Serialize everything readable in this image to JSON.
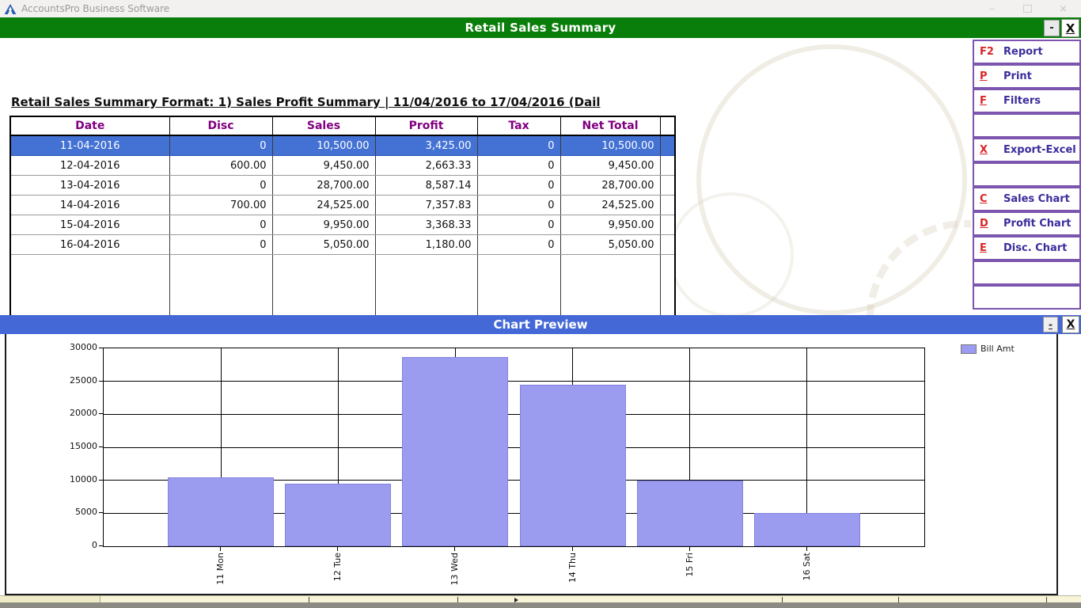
{
  "os_window": {
    "app_title": "AccountsPro Business Software",
    "minimize_glyph": "–",
    "close_glyph": "×"
  },
  "report_window": {
    "title": "Retail Sales Summary",
    "minimize_label": "-",
    "close_label": "X",
    "header_line": "Retail Sales Summary Format: 1) Sales  Profit Summary |  11/04/2016 to 17/04/2016 (Dail",
    "table": {
      "columns": [
        "Date",
        "Disc",
        "Sales",
        "Profit",
        "Tax",
        "Net Total"
      ],
      "rows": [
        [
          "11-04-2016",
          "0",
          "10,500.00",
          "3,425.00",
          "0",
          "10,500.00"
        ],
        [
          "12-04-2016",
          "600.00",
          "9,450.00",
          "2,663.33",
          "0",
          "9,450.00"
        ],
        [
          "13-04-2016",
          "0",
          "28,700.00",
          "8,587.14",
          "0",
          "28,700.00"
        ],
        [
          "14-04-2016",
          "700.00",
          "24,525.00",
          "7,357.83",
          "0",
          "24,525.00"
        ],
        [
          "15-04-2016",
          "0",
          "9,950.00",
          "3,368.33",
          "0",
          "9,950.00"
        ],
        [
          "16-04-2016",
          "0",
          "5,050.00",
          "1,180.00",
          "0",
          "5,050.00"
        ]
      ],
      "selected_row_index": 0
    }
  },
  "sidebar": {
    "buttons": [
      {
        "key": "F2",
        "label": "Report",
        "underline_key": false
      },
      {
        "key": "P",
        "label": "Print",
        "underline_key": true
      },
      {
        "key": "F",
        "label": "Filters",
        "underline_key": true
      },
      {
        "key": "",
        "label": "",
        "underline_key": false
      },
      {
        "key": "X",
        "label": "Export-Excel",
        "underline_key": true
      },
      {
        "key": "",
        "label": "",
        "underline_key": false
      },
      {
        "key": "C",
        "label": "Sales Chart",
        "underline_key": true
      },
      {
        "key": "D",
        "label": "Profit Chart",
        "underline_key": true
      },
      {
        "key": "E",
        "label": "Disc. Chart",
        "underline_key": true
      },
      {
        "key": "",
        "label": "",
        "underline_key": false
      },
      {
        "key": "",
        "label": "",
        "underline_key": false
      }
    ]
  },
  "chart_window": {
    "title": "Chart Preview",
    "minimize_label": "-",
    "close_label": "X"
  },
  "chart_data": {
    "type": "bar",
    "categories": [
      "11 Mon",
      "12 Tue",
      "13 Wed",
      "14 Thu",
      "15 Fri",
      "16 Sat"
    ],
    "values": [
      10500,
      9450,
      28700,
      24525,
      9950,
      5050
    ],
    "series_name": "Bill Amt",
    "title": "",
    "xlabel": "",
    "ylabel": "",
    "ylim": [
      0,
      30000
    ],
    "ytick_step": 5000,
    "grid": true,
    "legend_position": "top-right"
  },
  "colors": {
    "green-titlebar": "#0a7e0a",
    "chart-titlebar": "#4468d6",
    "selected-row": "#4472d4",
    "bar-color": "#9b9bef",
    "sidebar-border": "#7b55ae",
    "key-red": "#da2525",
    "label-purple": "#3a2d9b",
    "header-purple": "#800080"
  }
}
